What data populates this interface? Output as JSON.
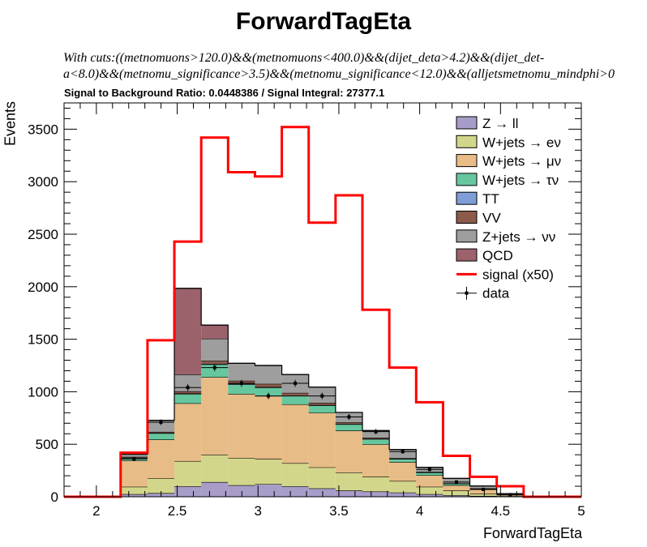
{
  "header": {
    "title": "ForwardTagEta",
    "cuts_line1": "With cuts:((metnomuons>120.0)&&(metnomuons<400.0)&&(dijet_deta>4.2)&&(dijet_det-",
    "cuts_line2": "a<8.0)&&(metnomu_significance>3.5)&&(metnomu_significance<12.0)&&(alljetsmetnomu_mindphi>0",
    "ratio_text": "Signal to Background Ratio: 0.0448386 / Signal Integral: 27377.1"
  },
  "chart_data": {
    "type": "histogram",
    "xlabel": "ForwardTagEta",
    "ylabel": "Events",
    "xlim": [
      1.8,
      5.0
    ],
    "ylim": [
      0,
      3750
    ],
    "xticks": [
      2,
      2.5,
      3,
      3.5,
      4,
      4.5,
      5
    ],
    "xtick_labels": [
      "2",
      "2.5",
      "3",
      "3.5",
      "4",
      "4.5",
      "5"
    ],
    "yticks": [
      0,
      500,
      1000,
      1500,
      2000,
      2500,
      3000,
      3500
    ],
    "ytick_labels": [
      "0",
      "500",
      "1000",
      "1500",
      "2000",
      "2500",
      "3000",
      "3500"
    ],
    "bin_edges": [
      2.15,
      2.3162,
      2.4824,
      2.6486,
      2.8148,
      2.981,
      3.1472,
      3.3134,
      3.4796,
      3.6458,
      3.812,
      3.9782,
      4.1444,
      4.3106,
      4.4768,
      4.643
    ],
    "stack": [
      {
        "name": "Z → ll",
        "color": "#a89cc8",
        "values": [
          25,
          35,
          100,
          140,
          110,
          120,
          100,
          80,
          60,
          50,
          40,
          25,
          15,
          8,
          3
        ]
      },
      {
        "name": "W+jets → eν",
        "color": "#d2d68a",
        "values": [
          70,
          140,
          240,
          260,
          260,
          240,
          220,
          200,
          170,
          140,
          110,
          70,
          45,
          22,
          7
        ]
      },
      {
        "name": "W+jets → μν",
        "color": "#e8bc86",
        "values": [
          250,
          370,
          550,
          740,
          610,
          600,
          560,
          520,
          400,
          310,
          180,
          110,
          50,
          40,
          10
        ]
      },
      {
        "name": "W+jets → τν",
        "color": "#66c79e",
        "values": [
          25,
          60,
          90,
          120,
          90,
          80,
          80,
          70,
          60,
          50,
          30,
          25,
          15,
          8,
          3
        ]
      },
      {
        "name": "TT",
        "color": "#7f9dd7",
        "values": [
          2,
          3,
          4,
          5,
          5,
          5,
          4,
          4,
          3,
          3,
          2,
          2,
          1,
          1,
          0
        ]
      },
      {
        "name": "VV",
        "color": "#8b5a4a",
        "values": [
          8,
          10,
          20,
          30,
          30,
          30,
          25,
          20,
          15,
          10,
          5,
          5,
          2,
          1,
          0
        ]
      },
      {
        "name": "Z+jets → νν",
        "color": "#9e9e9e",
        "values": [
          25,
          110,
          160,
          210,
          165,
          175,
          175,
          150,
          95,
          67,
          83,
          43,
          47,
          23,
          7
        ]
      },
      {
        "name": "QCD",
        "color": "#9b626b",
        "values": [
          0,
          0,
          820,
          130,
          0,
          0,
          0,
          0,
          0,
          0,
          0,
          0,
          0,
          0,
          0
        ]
      }
    ],
    "signal": {
      "name": "signal (x50)",
      "color": "#ff0000",
      "values": [
        420,
        1490,
        2430,
        3420,
        3090,
        3050,
        3520,
        2610,
        2870,
        1780,
        1230,
        900,
        390,
        190,
        100
      ]
    },
    "data": {
      "name": "data",
      "values": [
        360,
        710,
        1040,
        1230,
        1080,
        960,
        1080,
        960,
        760,
        620,
        430,
        260,
        140,
        70,
        20
      ]
    },
    "legend_position": "top-right"
  }
}
